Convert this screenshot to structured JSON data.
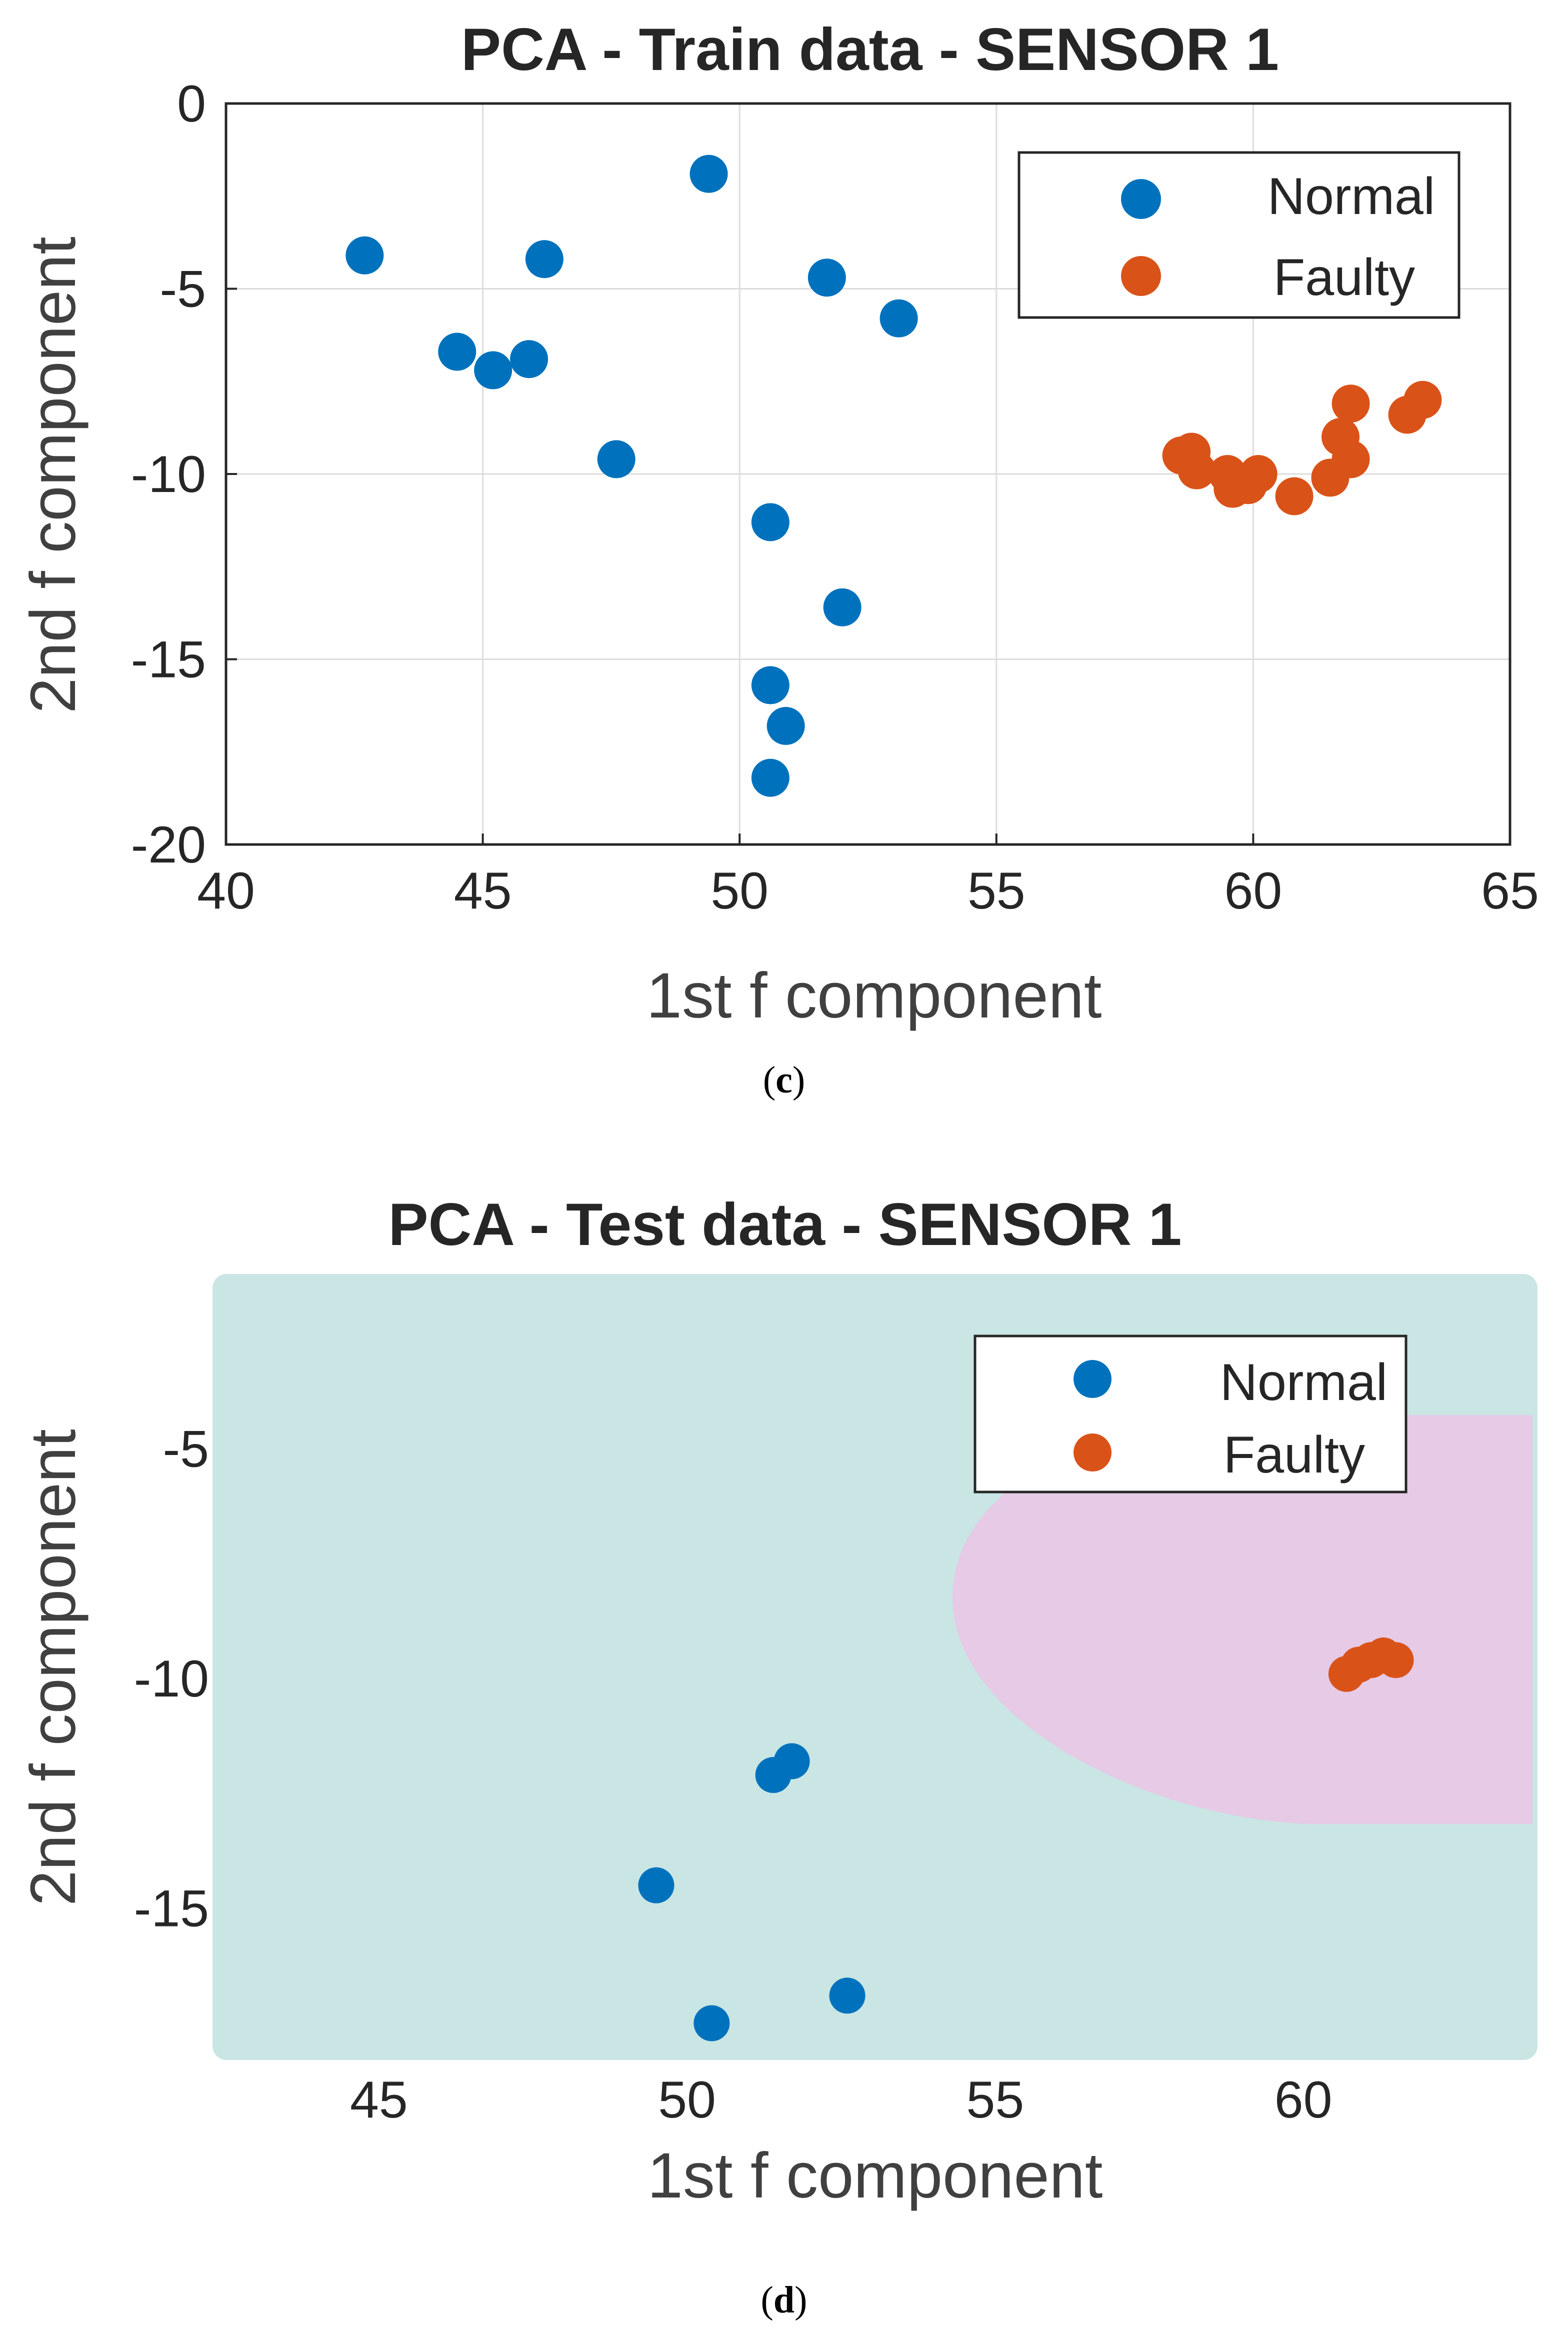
{
  "chart_data": [
    {
      "panel_label": "c",
      "type": "scatter",
      "title": "PCA - Train data - SENSOR 1",
      "xlabel": "1st f component",
      "ylabel": "2nd f component",
      "xlim": [
        40,
        65
      ],
      "ylim": [
        -20,
        0
      ],
      "xticks": [
        "40",
        "45",
        "50",
        "55",
        "60",
        "65"
      ],
      "yticks": [
        "0",
        "-5",
        "-10",
        "-15",
        "-20"
      ],
      "grid": true,
      "legend_position": "top-right",
      "series": [
        {
          "name": "Normal",
          "color": "#0072BD",
          "points": [
            [
              42.7,
              -4.1
            ],
            [
              44.5,
              -6.7
            ],
            [
              45.2,
              -7.2
            ],
            [
              45.9,
              -6.9
            ],
            [
              46.2,
              -4.2
            ],
            [
              47.6,
              -9.6
            ],
            [
              49.4,
              -1.9
            ],
            [
              50.6,
              -11.3
            ],
            [
              50.6,
              -15.7
            ],
            [
              50.9,
              -16.8
            ],
            [
              50.6,
              -18.2
            ],
            [
              51.7,
              -4.7
            ],
            [
              52.0,
              -13.6
            ],
            [
              53.1,
              -5.8
            ]
          ]
        },
        {
          "name": "Faulty",
          "color": "#D95319",
          "points": [
            [
              58.6,
              -9.5
            ],
            [
              58.8,
              -9.4
            ],
            [
              58.9,
              -9.9
            ],
            [
              59.5,
              -10.0
            ],
            [
              59.6,
              -10.4
            ],
            [
              59.9,
              -10.3
            ],
            [
              60.1,
              -10.0
            ],
            [
              60.8,
              -10.6
            ],
            [
              61.5,
              -10.1
            ],
            [
              61.7,
              -9.0
            ],
            [
              61.9,
              -9.6
            ],
            [
              61.9,
              -8.1
            ],
            [
              63.0,
              -8.4
            ],
            [
              63.3,
              -8.0
            ]
          ]
        }
      ]
    },
    {
      "panel_label": "d",
      "type": "scatter",
      "title": "PCA - Test data - SENSOR 1",
      "xlabel": "1st f component",
      "ylabel": "2nd f component",
      "xlim": [
        42.3,
        63.8
      ],
      "ylim": [
        -18.3,
        -1.2
      ],
      "xticks": [
        "45",
        "50",
        "55",
        "60"
      ],
      "yticks": [
        "-5",
        "-10",
        "-15"
      ],
      "grid": false,
      "legend_position": "top-right",
      "background_colors": {
        "normal_region": "#C9E5E4",
        "faulty_region": "#E6CAE6"
      },
      "series": [
        {
          "name": "Normal",
          "color": "#0072BD",
          "points": [
            [
              49.5,
              -14.5
            ],
            [
              50.4,
              -17.5
            ],
            [
              51.4,
              -12.1
            ],
            [
              51.7,
              -11.8
            ],
            [
              52.6,
              -16.9
            ]
          ]
        },
        {
          "name": "Faulty",
          "color": "#D95319",
          "points": [
            [
              60.7,
              -9.9
            ],
            [
              60.9,
              -9.7
            ],
            [
              61.1,
              -9.6
            ],
            [
              61.3,
              -9.5
            ],
            [
              61.5,
              -9.6
            ]
          ]
        }
      ]
    }
  ]
}
